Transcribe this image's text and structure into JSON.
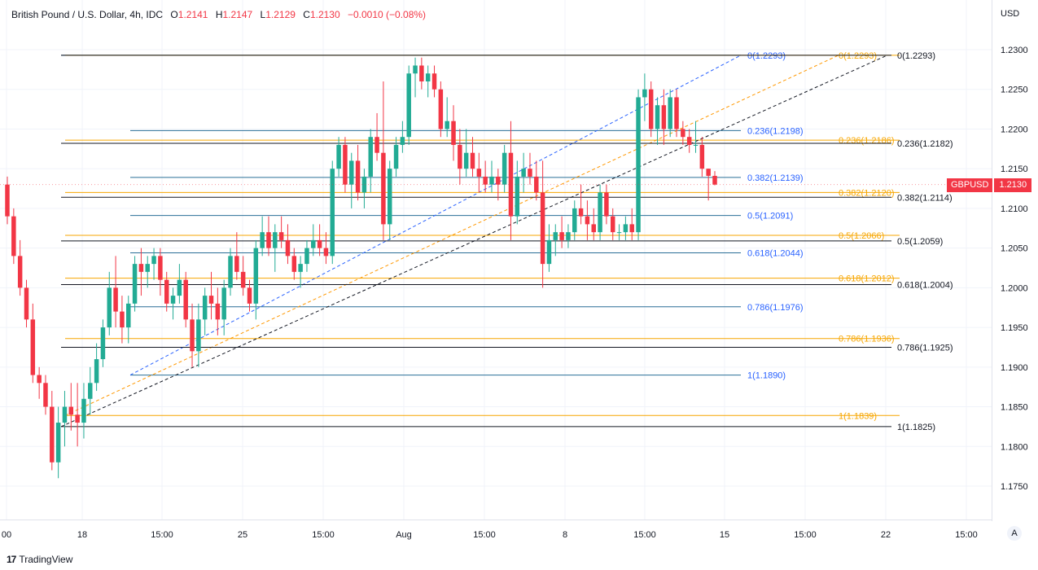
{
  "header": {
    "symbol": "British Pound / U.S. Dollar, 4h, IDC",
    "open_label": "O",
    "open": "1.2141",
    "high_label": "H",
    "high": "1.2147",
    "low_label": "L",
    "low": "1.2129",
    "close_label": "C",
    "close": "1.2130",
    "change": "−0.0010 (−0.08%)"
  },
  "currency": "USD",
  "price_tag": {
    "symbol": "GBPUSD",
    "value": "1.2130"
  },
  "footer": {
    "brand": "TradingView",
    "auto_button": "A"
  },
  "chart_data": {
    "type": "candlestick",
    "y_range": [
      1.17,
      1.233
    ],
    "y_ticks": [
      "1.2300",
      "1.2250",
      "1.2200",
      "1.2150",
      "1.2100",
      "1.2050",
      "1.2000",
      "1.1950",
      "1.1900",
      "1.1850",
      "1.1800",
      "1.1750"
    ],
    "x_ticks": [
      "00",
      "18",
      "15:00",
      "25",
      "15:00",
      "Aug",
      "15:00",
      "8",
      "15:00",
      "15",
      "15:00",
      "22",
      "15:00"
    ],
    "colors": {
      "up": "#22ab94",
      "down": "#f23645",
      "blue": "#2962ff",
      "orange": "#f7a600",
      "black": "#131722",
      "fib_blue_line": "#2a6f97"
    },
    "fib_sets": [
      {
        "name": "blue",
        "levels": [
          {
            "label": "0(1.2293)",
            "price": 1.2293
          },
          {
            "label": "0.236(1.2198)",
            "price": 1.2198
          },
          {
            "label": "0.382(1.2139)",
            "price": 1.2139
          },
          {
            "label": "0.5(1.2091)",
            "price": 1.2091
          },
          {
            "label": "0.618(1.2044)",
            "price": 1.2044
          },
          {
            "label": "0.786(1.1976)",
            "price": 1.1976
          },
          {
            "label": "1(1.1890)",
            "price": 1.189
          }
        ]
      },
      {
        "name": "orange",
        "levels": [
          {
            "label": "0(1.2293)",
            "price": 1.2293
          },
          {
            "label": "0.236(1.2186)",
            "price": 1.2186
          },
          {
            "label": "0.382(1.2120)",
            "price": 1.212
          },
          {
            "label": "0.5(1.2066)",
            "price": 1.2066
          },
          {
            "label": "0.618(1.2012)",
            "price": 1.2012
          },
          {
            "label": "0.786(1.1936)",
            "price": 1.1936
          },
          {
            "label": "1(1.1839)",
            "price": 1.1839
          }
        ]
      },
      {
        "name": "black",
        "levels": [
          {
            "label": "0(1.2293)",
            "price": 1.2293
          },
          {
            "label": "0.236(1.2182)",
            "price": 1.2182
          },
          {
            "label": "0.382(1.2114)",
            "price": 1.2114
          },
          {
            "label": "0.5(1.2059)",
            "price": 1.2059
          },
          {
            "label": "0.618(1.2004)",
            "price": 1.2004
          },
          {
            "label": "0.786(1.1925)",
            "price": 1.1925
          },
          {
            "label": "1(1.1825)",
            "price": 1.1825
          }
        ]
      }
    ],
    "candles_ohlc": [
      [
        1.213,
        1.214,
        1.208,
        1.209
      ],
      [
        1.209,
        1.21,
        1.203,
        1.204
      ],
      [
        1.204,
        1.206,
        1.199,
        1.2
      ],
      [
        1.2,
        1.201,
        1.195,
        1.196
      ],
      [
        1.196,
        1.198,
        1.188,
        1.189
      ],
      [
        1.189,
        1.19,
        1.186,
        1.188
      ],
      [
        1.188,
        1.189,
        1.184,
        1.185
      ],
      [
        1.185,
        1.187,
        1.177,
        1.178
      ],
      [
        1.178,
        1.185,
        1.176,
        1.183
      ],
      [
        1.183,
        1.187,
        1.18,
        1.185
      ],
      [
        1.185,
        1.188,
        1.182,
        1.184
      ],
      [
        1.184,
        1.188,
        1.18,
        1.183
      ],
      [
        1.183,
        1.188,
        1.181,
        1.186
      ],
      [
        1.186,
        1.19,
        1.184,
        1.188
      ],
      [
        1.188,
        1.193,
        1.187,
        1.191
      ],
      [
        1.191,
        1.196,
        1.19,
        1.195
      ],
      [
        1.195,
        1.202,
        1.194,
        1.2
      ],
      [
        1.2,
        1.204,
        1.195,
        1.197
      ],
      [
        1.197,
        1.199,
        1.193,
        1.195
      ],
      [
        1.195,
        1.199,
        1.193,
        1.198
      ],
      [
        1.198,
        1.204,
        1.197,
        1.203
      ],
      [
        1.203,
        1.205,
        1.199,
        1.202
      ],
      [
        1.202,
        1.204,
        1.2,
        1.203
      ],
      [
        1.203,
        1.205,
        1.201,
        1.204
      ],
      [
        1.204,
        1.205,
        1.199,
        1.201
      ],
      [
        1.201,
        1.202,
        1.197,
        1.198
      ],
      [
        1.198,
        1.2,
        1.196,
        1.199
      ],
      [
        1.199,
        1.203,
        1.198,
        1.201
      ],
      [
        1.201,
        1.202,
        1.195,
        1.196
      ],
      [
        1.196,
        1.198,
        1.19,
        1.192
      ],
      [
        1.192,
        1.198,
        1.19,
        1.196
      ],
      [
        1.196,
        1.2,
        1.194,
        1.199
      ],
      [
        1.199,
        1.202,
        1.196,
        1.198
      ],
      [
        1.198,
        1.2,
        1.194,
        1.196
      ],
      [
        1.196,
        1.201,
        1.194,
        1.2
      ],
      [
        1.2,
        1.205,
        1.199,
        1.204
      ],
      [
        1.204,
        1.207,
        1.201,
        1.202
      ],
      [
        1.202,
        1.204,
        1.199,
        1.2
      ],
      [
        1.2,
        1.201,
        1.197,
        1.198
      ],
      [
        1.198,
        1.206,
        1.196,
        1.205
      ],
      [
        1.205,
        1.209,
        1.204,
        1.207
      ],
      [
        1.207,
        1.209,
        1.204,
        1.205
      ],
      [
        1.205,
        1.208,
        1.202,
        1.207
      ],
      [
        1.207,
        1.209,
        1.205,
        1.206
      ],
      [
        1.206,
        1.208,
        1.203,
        1.204
      ],
      [
        1.204,
        1.205,
        1.201,
        1.202
      ],
      [
        1.202,
        1.204,
        1.2,
        1.203
      ],
      [
        1.203,
        1.206,
        1.202,
        1.205
      ],
      [
        1.205,
        1.208,
        1.204,
        1.206
      ],
      [
        1.206,
        1.208,
        1.204,
        1.205
      ],
      [
        1.205,
        1.207,
        1.203,
        1.204
      ],
      [
        1.204,
        1.216,
        1.203,
        1.215
      ],
      [
        1.215,
        1.219,
        1.214,
        1.218
      ],
      [
        1.218,
        1.219,
        1.212,
        1.213
      ],
      [
        1.213,
        1.217,
        1.21,
        1.216
      ],
      [
        1.216,
        1.218,
        1.211,
        1.212
      ],
      [
        1.212,
        1.215,
        1.21,
        1.214
      ],
      [
        1.214,
        1.22,
        1.212,
        1.219
      ],
      [
        1.219,
        1.222,
        1.216,
        1.217
      ],
      [
        1.217,
        1.226,
        1.206,
        1.208
      ],
      [
        1.208,
        1.216,
        1.206,
        1.215
      ],
      [
        1.215,
        1.219,
        1.214,
        1.218
      ],
      [
        1.218,
        1.221,
        1.217,
        1.219
      ],
      [
        1.219,
        1.228,
        1.218,
        1.227
      ],
      [
        1.227,
        1.229,
        1.224,
        1.228
      ],
      [
        1.228,
        1.229,
        1.225,
        1.226
      ],
      [
        1.226,
        1.228,
        1.224,
        1.227
      ],
      [
        1.227,
        1.228,
        1.224,
        1.225
      ],
      [
        1.225,
        1.226,
        1.219,
        1.22
      ],
      [
        1.22,
        1.224,
        1.219,
        1.221
      ],
      [
        1.221,
        1.223,
        1.216,
        1.218
      ],
      [
        1.218,
        1.22,
        1.213,
        1.215
      ],
      [
        1.215,
        1.22,
        1.214,
        1.217
      ],
      [
        1.217,
        1.219,
        1.214,
        1.215
      ],
      [
        1.215,
        1.217,
        1.212,
        1.214
      ],
      [
        1.214,
        1.216,
        1.212,
        1.213
      ],
      [
        1.213,
        1.216,
        1.212,
        1.214
      ],
      [
        1.214,
        1.215,
        1.211,
        1.213
      ],
      [
        1.213,
        1.218,
        1.212,
        1.217
      ],
      [
        1.217,
        1.221,
        1.206,
        1.209
      ],
      [
        1.209,
        1.216,
        1.208,
        1.214
      ],
      [
        1.214,
        1.217,
        1.212,
        1.215
      ],
      [
        1.215,
        1.217,
        1.213,
        1.214
      ],
      [
        1.214,
        1.216,
        1.211,
        1.212
      ],
      [
        1.212,
        1.216,
        1.2,
        1.203
      ],
      [
        1.203,
        1.208,
        1.202,
        1.206
      ],
      [
        1.206,
        1.208,
        1.204,
        1.207
      ],
      [
        1.207,
        1.209,
        1.205,
        1.206
      ],
      [
        1.206,
        1.208,
        1.205,
        1.207
      ],
      [
        1.207,
        1.211,
        1.206,
        1.21
      ],
      [
        1.21,
        1.213,
        1.208,
        1.209
      ],
      [
        1.209,
        1.211,
        1.206,
        1.208
      ],
      [
        1.208,
        1.21,
        1.206,
        1.207
      ],
      [
        1.207,
        1.213,
        1.206,
        1.212
      ],
      [
        1.212,
        1.213,
        1.208,
        1.209
      ],
      [
        1.209,
        1.21,
        1.206,
        1.207
      ],
      [
        1.207,
        1.208,
        1.206,
        1.207
      ],
      [
        1.207,
        1.209,
        1.206,
        1.208
      ],
      [
        1.208,
        1.21,
        1.206,
        1.207
      ],
      [
        1.207,
        1.225,
        1.206,
        1.224
      ],
      [
        1.224,
        1.227,
        1.221,
        1.225
      ],
      [
        1.225,
        1.226,
        1.219,
        1.22
      ],
      [
        1.22,
        1.224,
        1.218,
        1.223
      ],
      [
        1.223,
        1.225,
        1.218,
        1.22
      ],
      [
        1.22,
        1.225,
        1.219,
        1.224
      ],
      [
        1.224,
        1.225,
        1.219,
        1.22
      ],
      [
        1.22,
        1.221,
        1.218,
        1.219
      ],
      [
        1.219,
        1.22,
        1.217,
        1.218
      ],
      [
        1.218,
        1.221,
        1.217,
        1.218
      ],
      [
        1.218,
        1.219,
        1.214,
        1.215
      ],
      [
        1.215,
        1.215,
        1.211,
        1.2141
      ],
      [
        1.2141,
        1.2147,
        1.2129,
        1.213
      ]
    ]
  }
}
